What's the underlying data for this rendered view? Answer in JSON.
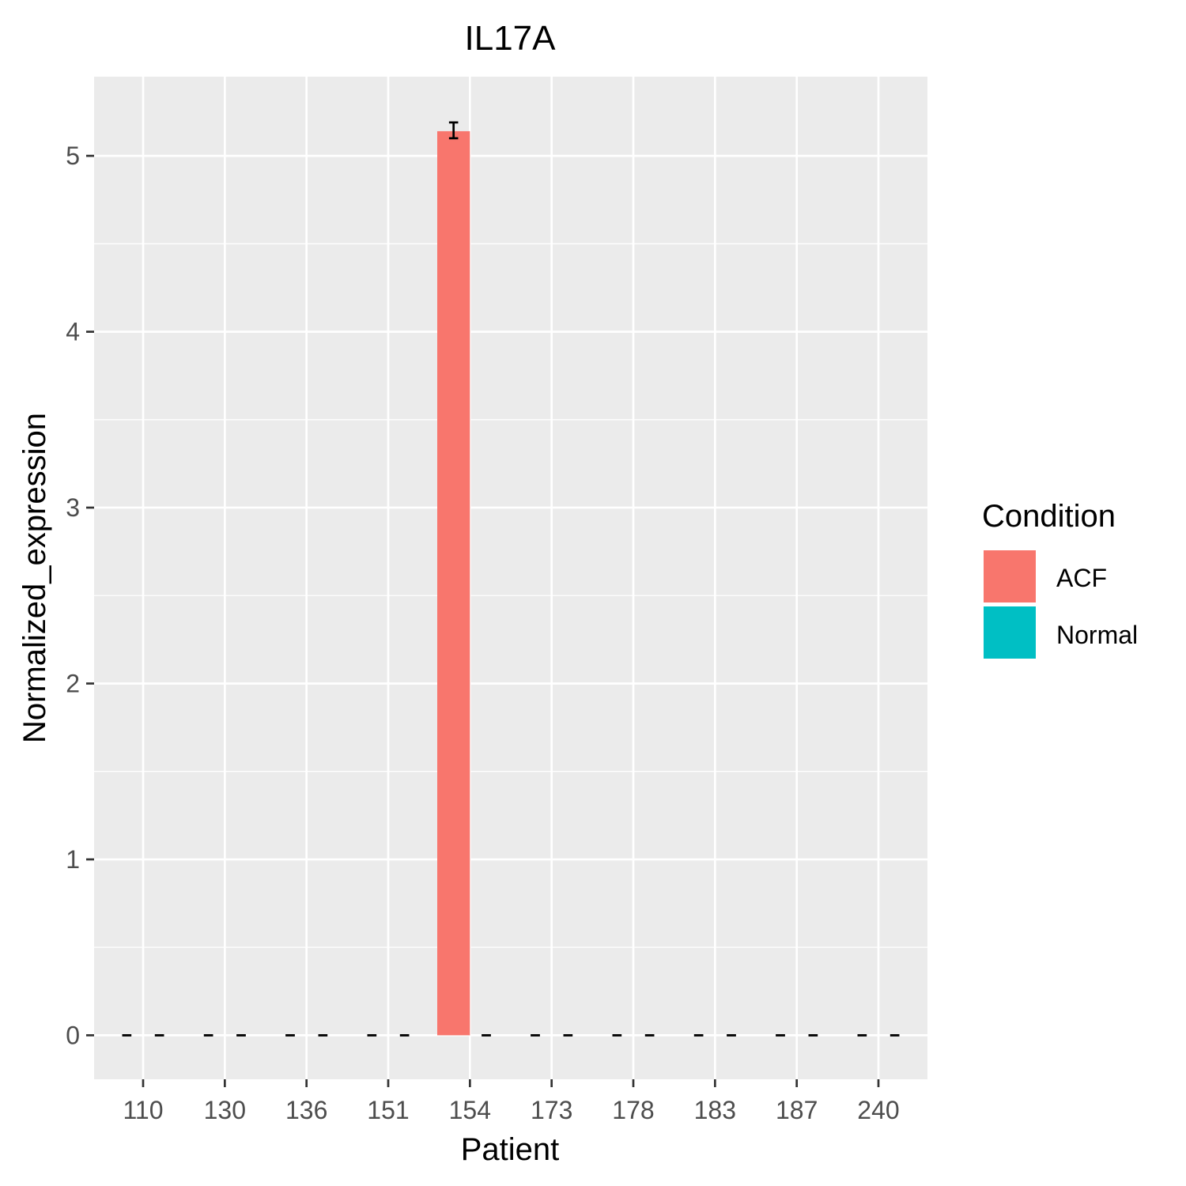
{
  "chart_data": {
    "type": "bar",
    "title": "IL17A",
    "xlabel": "Patient",
    "ylabel": "Normalized_expression",
    "categories": [
      "110",
      "130",
      "136",
      "151",
      "154",
      "173",
      "178",
      "183",
      "187",
      "240"
    ],
    "ylim": [
      -0.25,
      5.45
    ],
    "yticks": [
      0,
      1,
      2,
      3,
      4,
      5
    ],
    "grid": true,
    "legend": {
      "title": "Condition",
      "placement": "right",
      "entries": [
        {
          "name": "ACF",
          "color": "#F8766D"
        },
        {
          "name": "Normal",
          "color": "#00BFC4"
        }
      ]
    },
    "series": [
      {
        "name": "ACF",
        "color": "#F8766D",
        "values": [
          0,
          0,
          0,
          0,
          5.14,
          0,
          0,
          0,
          0,
          0
        ],
        "error_low": [
          0,
          0,
          0,
          0,
          5.1,
          0,
          0,
          0,
          0,
          0
        ],
        "error_high": [
          0,
          0,
          0,
          0,
          5.19,
          0,
          0,
          0,
          0,
          0
        ]
      },
      {
        "name": "Normal",
        "color": "#00BFC4",
        "values": [
          0,
          0,
          0,
          0,
          0,
          0,
          0,
          0,
          0,
          0
        ],
        "error_low": [
          0,
          0,
          0,
          0,
          0,
          0,
          0,
          0,
          0,
          0
        ],
        "error_high": [
          0,
          0,
          0,
          0,
          0,
          0,
          0,
          0,
          0,
          0
        ]
      }
    ]
  }
}
